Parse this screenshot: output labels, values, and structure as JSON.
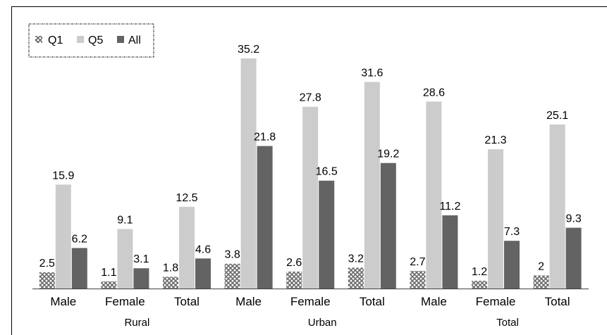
{
  "chart_data": {
    "type": "bar",
    "title": "",
    "xlabel": "",
    "ylabel": "",
    "ylim": [
      0,
      36
    ],
    "grid": false,
    "legend_position": "top-left",
    "categories": [
      "Male",
      "Female",
      "Total",
      "Male",
      "Female",
      "Total",
      "Male",
      "Female",
      "Total"
    ],
    "category_groups": [
      {
        "label": "Rural",
        "span": [
          0,
          2
        ]
      },
      {
        "label": "Urban",
        "span": [
          3,
          5
        ]
      },
      {
        "label": "Total",
        "span": [
          6,
          8
        ]
      }
    ],
    "series": [
      {
        "name": "Q1",
        "color": "#7f7f7f",
        "pattern": "crosshatch",
        "values": [
          2.5,
          1.1,
          1.8,
          3.8,
          2.6,
          3.2,
          2.7,
          1.2,
          2
        ]
      },
      {
        "name": "Q5",
        "color": "#cccccc",
        "values": [
          15.9,
          9.1,
          12.5,
          35.2,
          27.8,
          31.6,
          28.6,
          21.3,
          25.1
        ]
      },
      {
        "name": "All",
        "color": "#636363",
        "values": [
          6.2,
          3.1,
          4.6,
          21.8,
          16.5,
          19.2,
          11.2,
          7.3,
          9.3
        ]
      }
    ]
  }
}
